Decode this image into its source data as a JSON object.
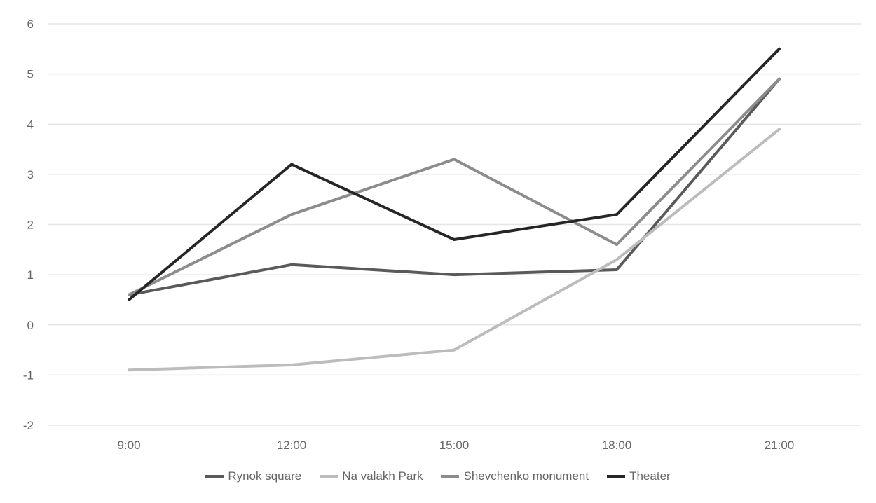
{
  "chart_data": {
    "type": "line",
    "title": "",
    "xlabel": "",
    "ylabel": "",
    "categories": [
      "9:00",
      "12:00",
      "15:00",
      "18:00",
      "21:00"
    ],
    "ylim": [
      -2,
      6
    ],
    "yticks": [
      "-2",
      "-1",
      "0",
      "1",
      "2",
      "3",
      "4",
      "5",
      "6"
    ],
    "grid": true,
    "legend_position": "bottom",
    "series": [
      {
        "name": "Rynok square",
        "color": "#5a5a5a",
        "values": [
          0.6,
          1.2,
          1.0,
          1.1,
          4.9
        ]
      },
      {
        "name": "Na valakh Park",
        "color": "#bcbcbc",
        "values": [
          -0.9,
          -0.8,
          -0.5,
          1.3,
          3.9
        ]
      },
      {
        "name": "Shevchenko monument",
        "color": "#8c8c8c",
        "values": [
          0.6,
          2.2,
          3.3,
          1.6,
          4.9
        ]
      },
      {
        "name": "Theater",
        "color": "#262626",
        "values": [
          0.5,
          3.2,
          1.7,
          2.2,
          5.5
        ]
      }
    ]
  }
}
